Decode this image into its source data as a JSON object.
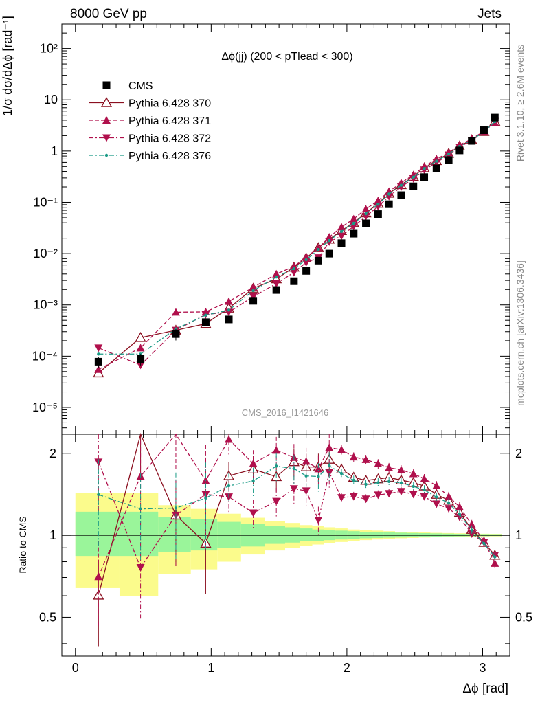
{
  "header": {
    "left": "8000 GeV pp",
    "right": "Jets"
  },
  "side_labels": {
    "rivet": "Rivet 3.1.10, ≥ 2.6M events",
    "mcplots": "mcplots.cern.ch [arXiv:1306.3436]"
  },
  "chart_data": {
    "type": "line",
    "title": "Δϕ(jj) (200 < pTlead <  300)",
    "watermark": "CMS_2016_I1421646",
    "xlabel": "Δϕ [rad]",
    "ylabel_top": "1/σ dσ/dΔϕ [rad⁻¹]",
    "ylabel_bottom": "Ratio to CMS",
    "xlim": [
      -0.1,
      3.2
    ],
    "ylim_top": [
      3e-06,
      300
    ],
    "ylim_bottom": [
      0.36,
      2.35
    ],
    "y_scale_top": "log",
    "y_scale_bottom": "log",
    "x_ticks": [
      0,
      1,
      2,
      3
    ],
    "y_ticks_top": [
      "10⁻⁵",
      "10⁻⁴",
      "10⁻³",
      "10⁻²",
      "10⁻¹",
      "1",
      "10",
      "10²"
    ],
    "y_ticks_bottom": [
      "0.5",
      "1",
      "2"
    ],
    "legend_position": "top-left",
    "x": [
      0.17,
      0.48,
      0.74,
      0.96,
      1.13,
      1.31,
      1.48,
      1.61,
      1.7,
      1.79,
      1.87,
      1.96,
      2.05,
      2.14,
      2.23,
      2.31,
      2.4,
      2.49,
      2.57,
      2.66,
      2.75,
      2.83,
      2.92,
      3.01,
      3.09
    ],
    "series": [
      {
        "name": "CMS",
        "color": "#000000",
        "marker": "square",
        "values": [
          7.8e-05,
          8.8e-05,
          0.00027,
          0.00046,
          0.00052,
          0.0012,
          0.00195,
          0.0029,
          0.0046,
          0.0073,
          0.01,
          0.016,
          0.0245,
          0.039,
          0.059,
          0.092,
          0.138,
          0.205,
          0.31,
          0.46,
          0.67,
          1.03,
          1.58,
          2.55,
          4.5
        ]
      },
      {
        "name": "Pythia 6.428 370",
        "color": "#8b1020",
        "marker": "open-triangle-up",
        "line": "solid",
        "values": [
          4.7e-05,
          0.00023,
          0.00032,
          0.00043,
          0.00086,
          0.0021,
          0.0032,
          0.0054,
          0.0082,
          0.013,
          0.019,
          0.028,
          0.04,
          0.062,
          0.095,
          0.15,
          0.22,
          0.32,
          0.47,
          0.65,
          0.9,
          1.25,
          1.66,
          2.4,
          3.8
        ]
      },
      {
        "name": "Pythia 6.428 371",
        "color": "#b0104c",
        "marker": "filled-triangle-up",
        "line": "dashed",
        "values": [
          5.5e-05,
          0.000145,
          0.00072,
          0.00073,
          0.00117,
          0.0022,
          0.004,
          0.0056,
          0.0086,
          0.0128,
          0.021,
          0.033,
          0.0475,
          0.074,
          0.108,
          0.163,
          0.24,
          0.345,
          0.5,
          0.7,
          0.93,
          1.31,
          1.73,
          2.44,
          3.55
        ]
      },
      {
        "name": "Pythia 6.428 372",
        "color": "#b0104c",
        "marker": "filled-triangle-down",
        "line": "dashdot",
        "values": [
          0.000145,
          6.7e-05,
          0.00032,
          0.00065,
          0.00072,
          0.00145,
          0.0026,
          0.0043,
          0.0067,
          0.0083,
          0.017,
          0.022,
          0.034,
          0.053,
          0.083,
          0.131,
          0.2,
          0.29,
          0.43,
          0.6,
          0.84,
          1.2,
          1.6,
          2.4,
          3.8
        ]
      },
      {
        "name": "Pythia 6.428 376",
        "color": "#1a9a86",
        "marker": "dot",
        "line": "dashdot",
        "values": [
          0.00011,
          0.00011,
          0.00034,
          0.00063,
          0.00079,
          0.0019,
          0.0035,
          0.0051,
          0.0076,
          0.012,
          0.018,
          0.027,
          0.039,
          0.06,
          0.092,
          0.145,
          0.215,
          0.31,
          0.455,
          0.635,
          0.88,
          1.23,
          1.65,
          2.38,
          3.75
        ]
      }
    ],
    "ratio_band_green": [
      [
        0.84,
        1.22
      ],
      [
        0.84,
        1.22
      ],
      [
        0.87,
        1.17
      ],
      [
        0.88,
        1.15
      ],
      [
        0.9,
        1.12
      ],
      [
        0.91,
        1.1
      ],
      [
        0.93,
        1.08
      ],
      [
        0.94,
        1.07
      ],
      [
        0.95,
        1.06
      ],
      [
        0.955,
        1.05
      ],
      [
        0.96,
        1.045
      ],
      [
        0.965,
        1.04
      ],
      [
        0.97,
        1.035
      ],
      [
        0.975,
        1.03
      ],
      [
        0.978,
        1.027
      ],
      [
        0.98,
        1.024
      ],
      [
        0.982,
        1.022
      ],
      [
        0.985,
        1.02
      ],
      [
        0.987,
        1.018
      ],
      [
        0.988,
        1.016
      ],
      [
        0.99,
        1.014
      ],
      [
        0.991,
        1.012
      ],
      [
        0.992,
        1.011
      ],
      [
        0.993,
        1.01
      ],
      [
        0.994,
        1.009
      ]
    ],
    "ratio_band_yellow": [
      [
        0.64,
        1.43
      ],
      [
        0.6,
        1.43
      ],
      [
        0.72,
        1.29
      ],
      [
        0.75,
        1.25
      ],
      [
        0.8,
        1.2
      ],
      [
        0.85,
        1.16
      ],
      [
        0.88,
        1.13
      ],
      [
        0.9,
        1.11
      ],
      [
        0.915,
        1.09
      ],
      [
        0.925,
        1.08
      ],
      [
        0.935,
        1.07
      ],
      [
        0.945,
        1.06
      ],
      [
        0.955,
        1.05
      ],
      [
        0.96,
        1.045
      ],
      [
        0.965,
        1.04
      ],
      [
        0.97,
        1.035
      ],
      [
        0.975,
        1.03
      ],
      [
        0.978,
        1.027
      ],
      [
        0.981,
        1.024
      ],
      [
        0.983,
        1.021
      ],
      [
        0.985,
        1.019
      ],
      [
        0.987,
        1.017
      ],
      [
        0.989,
        1.015
      ],
      [
        0.99,
        1.013
      ],
      [
        0.991,
        1.012
      ]
    ]
  }
}
